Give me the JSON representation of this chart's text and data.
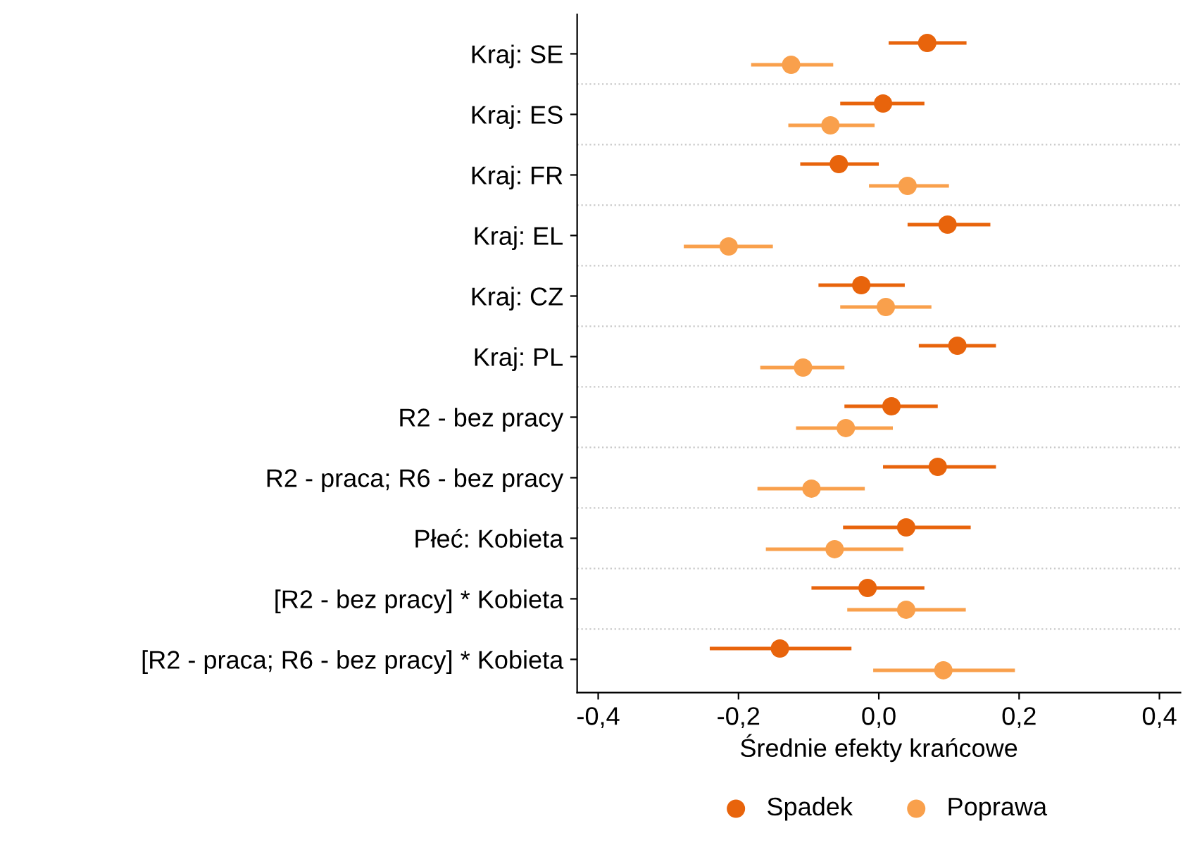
{
  "chart_data": {
    "type": "scatter",
    "orientation": "horizontal",
    "xlabel": "Średnie efekty krańcowe",
    "categories": [
      "Kraj: SE",
      "Kraj: ES",
      "Kraj: FR",
      "Kraj: EL",
      "Kraj: CZ",
      "Kraj: PL",
      "R2 - bez pracy",
      "R2 - praca; R6 - bez pracy",
      "Płeć: Kobieta",
      "[R2 - bez pracy] * Kobieta",
      "[R2 - praca; R6 - bez pracy] * Kobieta"
    ],
    "series": [
      {
        "name": "Spadek",
        "color": "#e8640c",
        "values": [
          0.069,
          0.006,
          -0.057,
          0.098,
          -0.025,
          0.112,
          0.018,
          0.084,
          0.039,
          -0.016,
          -0.141
        ],
        "errors": [
          [
            0.014,
            0.125
          ],
          [
            -0.055,
            0.065
          ],
          [
            -0.112,
            0.0
          ],
          [
            0.041,
            0.159
          ],
          [
            -0.086,
            0.037
          ],
          [
            0.057,
            0.167
          ],
          [
            -0.049,
            0.084
          ],
          [
            0.006,
            0.167
          ],
          [
            -0.051,
            0.131
          ],
          [
            -0.096,
            0.065
          ],
          [
            -0.241,
            -0.039
          ]
        ]
      },
      {
        "name": "Poprawa",
        "color": "#f9a04c",
        "values": [
          -0.125,
          -0.069,
          0.041,
          -0.214,
          0.01,
          -0.108,
          -0.047,
          -0.096,
          -0.063,
          0.039,
          0.092
        ],
        "errors": [
          [
            -0.182,
            -0.065
          ],
          [
            -0.129,
            -0.006
          ],
          [
            -0.014,
            0.1
          ],
          [
            -0.278,
            -0.151
          ],
          [
            -0.055,
            0.075
          ],
          [
            -0.169,
            -0.049
          ],
          [
            -0.118,
            0.02
          ],
          [
            -0.173,
            -0.02
          ],
          [
            -0.161,
            0.035
          ],
          [
            -0.045,
            0.124
          ],
          [
            -0.008,
            0.194
          ]
        ]
      }
    ],
    "xlim": [
      -0.43,
      0.43
    ],
    "xticks": [
      {
        "value": -0.4,
        "label": "-0,4"
      },
      {
        "value": -0.2,
        "label": "-0,2"
      },
      {
        "value": 0,
        "label": "0,0"
      },
      {
        "value": 0.2,
        "label": "0,2"
      },
      {
        "value": 0.4,
        "label": "0,4"
      }
    ],
    "grid": "y",
    "legend": "bottom",
    "marker": "circle"
  }
}
